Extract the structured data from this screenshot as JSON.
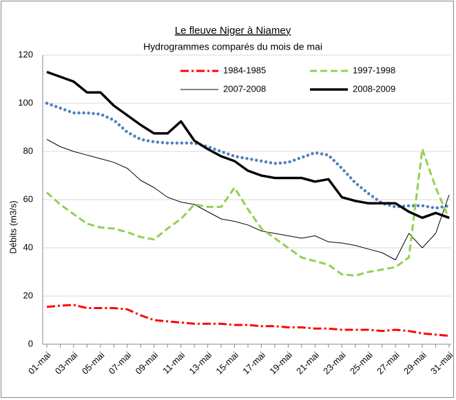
{
  "chart_data": {
    "type": "line",
    "title": "Le fleuve Niger à Niamey",
    "subtitle": "Hydrogrammes comparés du mois de mai",
    "y_label": "Débits (m3/s)",
    "categories": [
      "01-mai",
      null,
      "03-mai",
      null,
      "05-mai",
      null,
      "07-mai",
      null,
      "09-mai",
      null,
      "11-mai",
      null,
      "13-mai",
      null,
      "15-mai",
      null,
      "17-mai",
      null,
      "19-mai",
      null,
      "21-mai",
      null,
      "23-mai",
      null,
      "25-mai",
      null,
      "27-mai",
      null,
      "29-mai",
      null,
      "31-mai"
    ],
    "series": [
      {
        "name": "1984-1985",
        "color": "#ff0000",
        "style": "dashdot",
        "values": [
          15.5,
          16,
          16.3,
          15,
          15,
          15,
          14.5,
          12,
          10,
          9.5,
          9,
          8.5,
          8.5,
          8.5,
          8,
          8,
          7.5,
          7.5,
          7,
          7,
          6.5,
          6.5,
          6,
          6,
          6,
          5.5,
          6,
          5.5,
          4.5,
          4,
          3.5
        ]
      },
      {
        "name": "1997-1998",
        "color": "#92d050",
        "style": "dashed",
        "values": [
          63,
          58,
          54,
          50,
          48.5,
          48,
          46.5,
          44.5,
          43.5,
          48,
          52,
          58,
          57,
          57,
          65,
          56,
          48,
          44,
          40,
          36,
          34.5,
          33,
          29,
          28.5,
          30,
          31,
          32,
          36,
          81,
          65,
          52
        ]
      },
      {
        "name": "2007-2008",
        "color": "#000000",
        "style": "thin",
        "values": [
          85,
          82,
          80,
          78.5,
          77,
          75.5,
          73,
          68,
          65,
          61,
          59,
          58,
          55,
          52,
          51,
          49.5,
          47,
          46,
          45,
          44,
          45,
          42.5,
          42,
          41,
          39.5,
          38,
          35,
          46,
          40,
          46,
          62
        ]
      },
      {
        "name": "2008-2009",
        "color": "#000000",
        "style": "thick",
        "values": [
          113,
          111,
          109,
          104.5,
          104.5,
          99,
          95,
          91,
          87.5,
          87.5,
          92.5,
          84.5,
          81,
          78,
          76,
          72,
          70,
          69,
          69,
          69,
          67.5,
          68.5,
          61,
          59.5,
          58.5,
          58.5,
          58.5,
          55,
          52.5,
          54.5,
          52.5
        ]
      },
      {
        "color": "#4f81bd",
        "style": "dotted",
        "values": [
          100,
          98,
          96,
          96,
          95.5,
          93,
          88,
          85,
          84,
          83.5,
          83.5,
          83.5,
          82,
          80,
          78,
          77,
          76,
          75,
          75.5,
          77.5,
          79.5,
          78.5,
          73,
          67,
          62.5,
          58.5,
          57,
          57.5,
          57.5,
          56.5,
          57.5
        ]
      }
    ],
    "ylim": [
      0,
      120
    ],
    "yticks": [
      0,
      20,
      40,
      60,
      80,
      100,
      120
    ],
    "grid": true
  }
}
